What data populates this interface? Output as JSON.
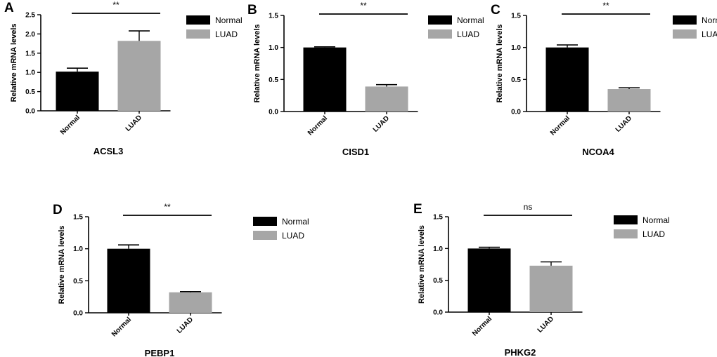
{
  "colors": {
    "normal": "#000000",
    "luad": "#a6a6a6",
    "axis": "#000000"
  },
  "chart_data": [
    {
      "type": "bar",
      "label": "A",
      "title": "ACSL3",
      "ylabel": "Relative mRNA levels",
      "categories": [
        "Normal",
        "LUAD"
      ],
      "values": [
        1.02,
        1.82
      ],
      "errors": [
        0.09,
        0.26
      ],
      "ylim": [
        0,
        2.5
      ],
      "yticks": [
        "0.0",
        "0.5",
        "1.0",
        "1.5",
        "2.0",
        "2.5"
      ],
      "significance": "**",
      "legend": [
        "Normal",
        "LUAD"
      ]
    },
    {
      "type": "bar",
      "label": "B",
      "title": "CISD1",
      "ylabel": "Relative mRNA levels",
      "categories": [
        "Normal",
        "LUAD"
      ],
      "values": [
        1.0,
        0.39
      ],
      "errors": [
        0.01,
        0.03
      ],
      "ylim": [
        0,
        1.5
      ],
      "yticks": [
        "0.0",
        "0.5",
        "1.0",
        "1.5"
      ],
      "significance": "**",
      "legend": [
        "Normal",
        "LUAD"
      ]
    },
    {
      "type": "bar",
      "label": "C",
      "title": "NCOA4",
      "ylabel": "Relative mRNA levels",
      "categories": [
        "Normal",
        "LUAD"
      ],
      "values": [
        1.0,
        0.35
      ],
      "errors": [
        0.04,
        0.02
      ],
      "ylim": [
        0,
        1.5
      ],
      "yticks": [
        "0.0",
        "0.5",
        "1.0",
        "1.5"
      ],
      "significance": "**",
      "legend": [
        "Normal",
        "LUAD"
      ]
    },
    {
      "type": "bar",
      "label": "D",
      "title": "PEBP1",
      "ylabel": "Relative mRNA levels",
      "categories": [
        "Normal",
        "LUAD"
      ],
      "values": [
        1.0,
        0.32
      ],
      "errors": [
        0.06,
        0.01
      ],
      "ylim": [
        0,
        1.5
      ],
      "yticks": [
        "0.0",
        "0.5",
        "1.0",
        "1.5"
      ],
      "significance": "**",
      "legend": [
        "Normal",
        "LUAD"
      ]
    },
    {
      "type": "bar",
      "label": "E",
      "title": "PHKG2",
      "ylabel": "Relative mRNA levels",
      "categories": [
        "Normal",
        "LUAD"
      ],
      "values": [
        1.0,
        0.73
      ],
      "errors": [
        0.02,
        0.06
      ],
      "ylim": [
        0,
        1.5
      ],
      "yticks": [
        "0.0",
        "0.5",
        "1.0",
        "1.5"
      ],
      "significance": "ns",
      "legend": [
        "Normal",
        "LUAD"
      ]
    }
  ]
}
